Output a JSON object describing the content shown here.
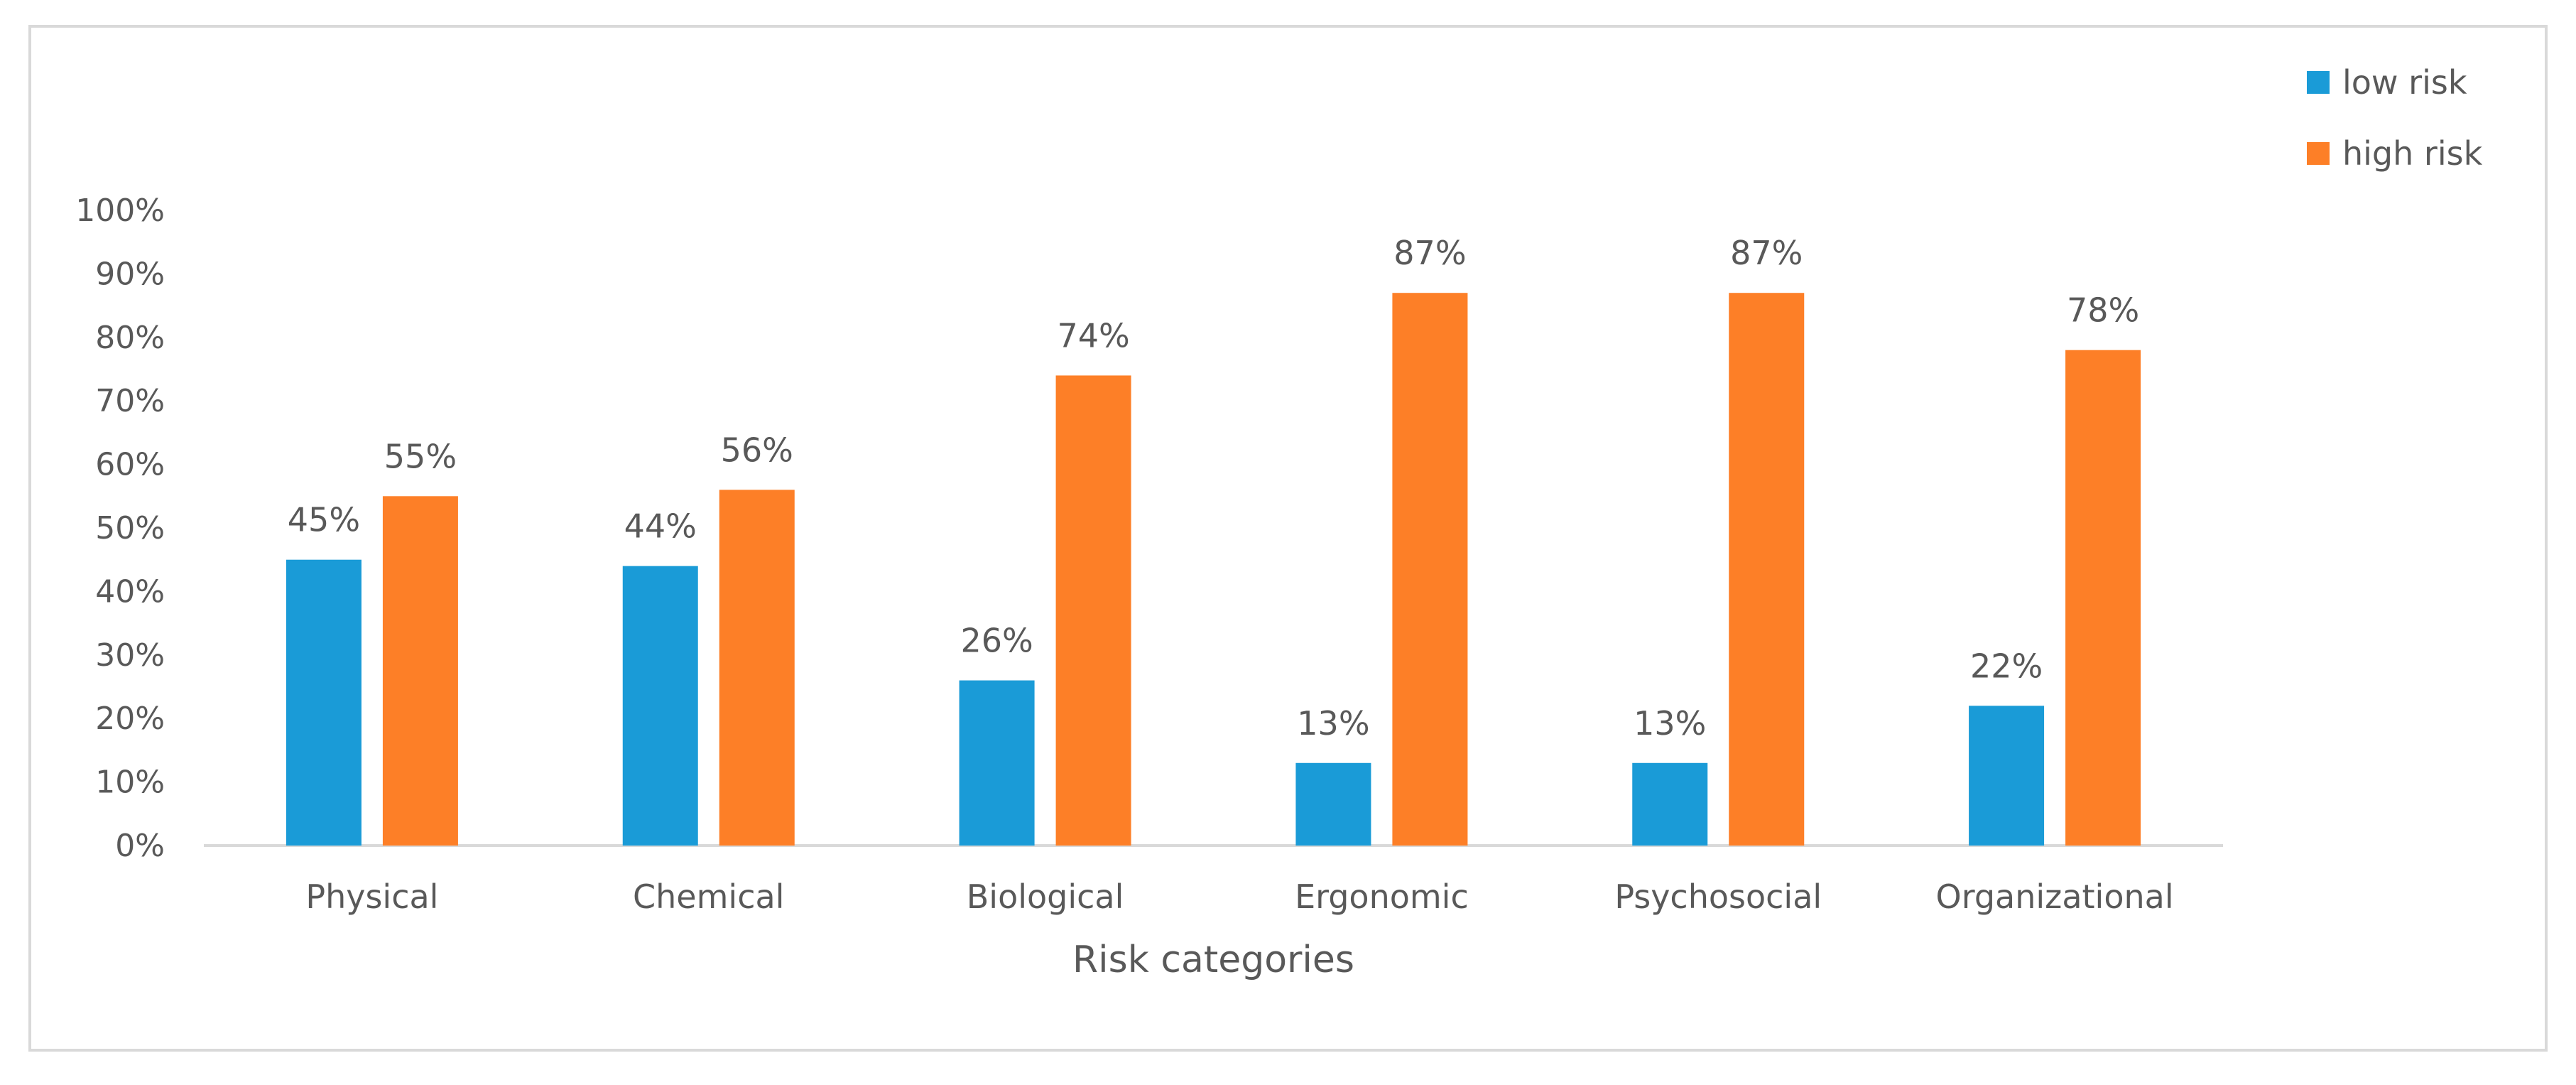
{
  "chart_data": {
    "type": "bar",
    "title": "",
    "xlabel": "Risk categories",
    "ylabel": "",
    "ylim": [
      0,
      100
    ],
    "y_ticks": [
      "0%",
      "10%",
      "20%",
      "30%",
      "40%",
      "50%",
      "60%",
      "70%",
      "80%",
      "90%",
      "100%"
    ],
    "categories": [
      "Physical",
      "Chemical",
      "Biological",
      "Ergonomic",
      "Psychosocial",
      "Organizational"
    ],
    "series": [
      {
        "name": "low risk",
        "color": "#1a9bd7",
        "values": [
          45,
          44,
          26,
          13,
          13,
          22
        ],
        "labels": [
          "45%",
          "44%",
          "26%",
          "13%",
          "13%",
          "22%"
        ]
      },
      {
        "name": "high risk",
        "color": "#fd7f27",
        "values": [
          55,
          56,
          74,
          87,
          87,
          78
        ],
        "labels": [
          "55%",
          "56%",
          "74%",
          "87%",
          "87%",
          "78%"
        ]
      }
    ],
    "legend_position": "top-right",
    "grid": false
  }
}
